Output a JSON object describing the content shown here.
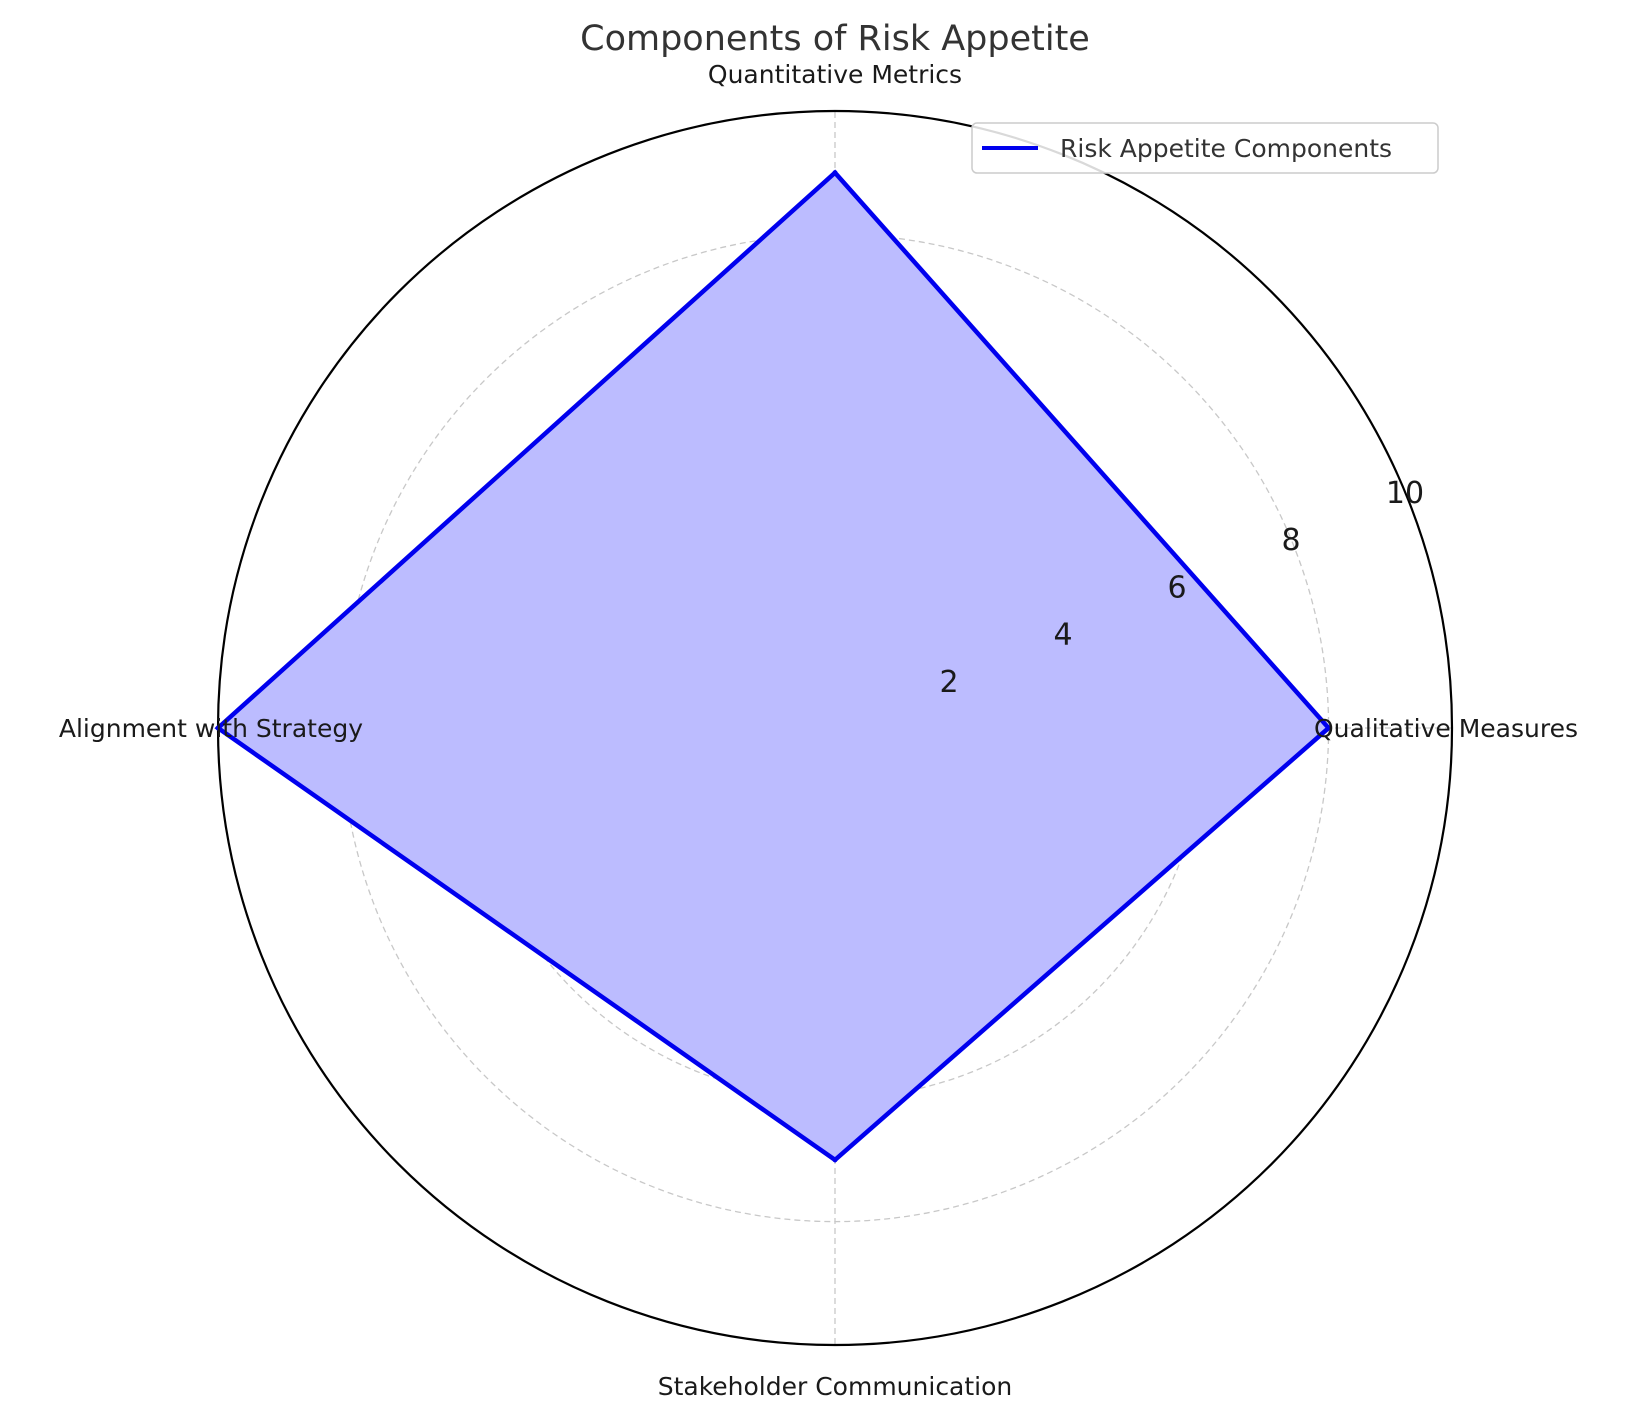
{
  "chart_data": {
    "type": "radar",
    "title": "Components of Risk Appetite",
    "categories": [
      "Qualitative Measures",
      "Quantitative Metrics",
      "Alignment with Strategy",
      "Stakeholder Communication"
    ],
    "series": [
      {
        "name": "Risk Appetite Components",
        "values": [
          8,
          9,
          10,
          7
        ]
      }
    ],
    "rlim": [
      0,
      10
    ],
    "rticks": [
      2,
      4,
      6,
      8,
      10
    ],
    "rtick_labels": [
      "2",
      "4",
      "6",
      "8",
      "10"
    ],
    "grid": true,
    "legend": "top-right",
    "colors": {
      "line": "#0000ee",
      "fill": "#bcbcff",
      "grid": "#c8c8c8",
      "frame": "#000000"
    }
  }
}
